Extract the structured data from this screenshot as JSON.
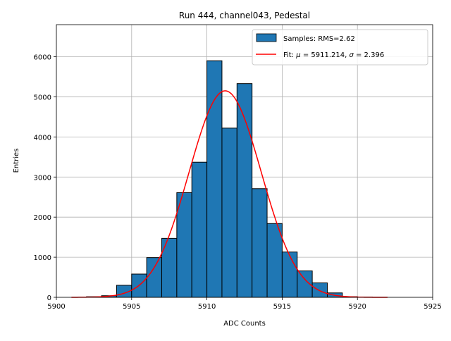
{
  "chart_data": {
    "type": "bar",
    "title": "Run 444, channel043, Pedestal",
    "xlabel": "ADC Counts",
    "ylabel": "Entries",
    "xlim": [
      5900,
      5925
    ],
    "ylim": [
      0,
      6800
    ],
    "xticks": [
      "5900",
      "5905",
      "5910",
      "5915",
      "5920",
      "5925"
    ],
    "yticks": [
      "0",
      "1000",
      "2000",
      "3000",
      "4000",
      "5000",
      "6000"
    ],
    "xtick_values": [
      5900,
      5905,
      5910,
      5915,
      5920,
      5925
    ],
    "ytick_values": [
      0,
      1000,
      2000,
      3000,
      4000,
      5000,
      6000
    ],
    "grid": true,
    "legend_position": "top-right",
    "histogram": {
      "name": "Samples: RMS=2.62",
      "bin_edges": [
        5901,
        5902,
        5903,
        5904,
        5905,
        5906,
        5907,
        5908,
        5909,
        5910,
        5911,
        5912,
        5913,
        5914,
        5915,
        5916,
        5917,
        5918,
        5919,
        5920,
        5921,
        5922
      ],
      "counts": [
        0,
        15,
        40,
        300,
        580,
        990,
        1470,
        2610,
        3370,
        5900,
        4220,
        5330,
        2710,
        1840,
        1130,
        660,
        360,
        110,
        15,
        5,
        0
      ],
      "color": "#1f77b4"
    },
    "fit": {
      "name_prefix": "Fit: ",
      "mu_symbol": "μ",
      "mu_text": " = 5911.214, ",
      "sigma_symbol": "σ",
      "sigma_text": " = 2.396",
      "mu": 5911.214,
      "sigma": 2.396,
      "amplitude": 5150,
      "x_range": [
        5901,
        5922
      ],
      "color": "#ff0000"
    }
  }
}
